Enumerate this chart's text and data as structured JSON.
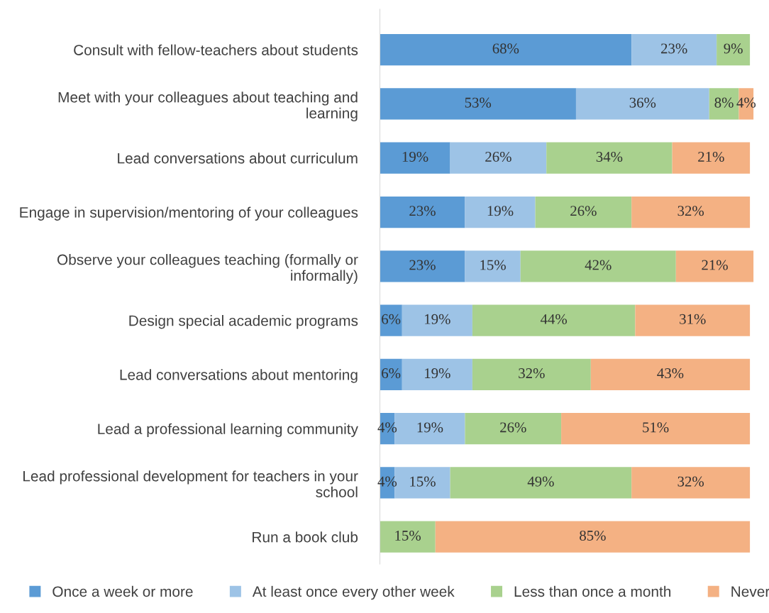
{
  "chart_data": {
    "type": "bar",
    "orientation": "horizontal",
    "stacked": true,
    "legend": "bottom",
    "tick_labels": "y",
    "grid": false,
    "categories": [
      "Consult with fellow-teachers about students",
      "Meet with your colleagues about teaching and\nlearning",
      "Lead conversations about curriculum",
      "Engage in supervision/mentoring of your colleagues",
      "Observe your colleagues teaching (formally or\ninformally)",
      "Design special academic programs",
      "Lead conversations about mentoring",
      "Lead a professional learning community",
      "Lead professional development for teachers in your\nschool",
      "Run a book club"
    ],
    "series": [
      {
        "name": "Once a week or more",
        "color": "#5b9bd5",
        "values": [
          68,
          53,
          19,
          23,
          23,
          6,
          6,
          4,
          4,
          null
        ],
        "value_labels": [
          "68%",
          "53%",
          "19%",
          "23%",
          "23%",
          "6%",
          "6%",
          "4%",
          "4%",
          null
        ]
      },
      {
        "name": "At least once every other week",
        "color": "#9dc3e6",
        "values": [
          23,
          36,
          26,
          19,
          15,
          19,
          19,
          19,
          15,
          null
        ],
        "value_labels": [
          "23%",
          "36%",
          "26%",
          "19%",
          "15%",
          "19%",
          "19%",
          "19%",
          "15%",
          null
        ]
      },
      {
        "name": "Less than once a month",
        "color": "#a9d18e",
        "values": [
          9,
          8,
          34,
          26,
          42,
          44,
          32,
          26,
          49,
          15
        ],
        "value_labels": [
          "9%",
          "8%",
          "34%",
          "26%",
          "42%",
          "44%",
          "32%",
          "26%",
          "49%",
          "15%"
        ]
      },
      {
        "name": "Never",
        "color": "#f4b183",
        "values": [
          null,
          4,
          21,
          32,
          21,
          31,
          43,
          51,
          32,
          85
        ],
        "value_labels": [
          null,
          "4%",
          "21%",
          "32%",
          "21%",
          "31%",
          "43%",
          "51%",
          "32%",
          "85%"
        ]
      }
    ]
  }
}
